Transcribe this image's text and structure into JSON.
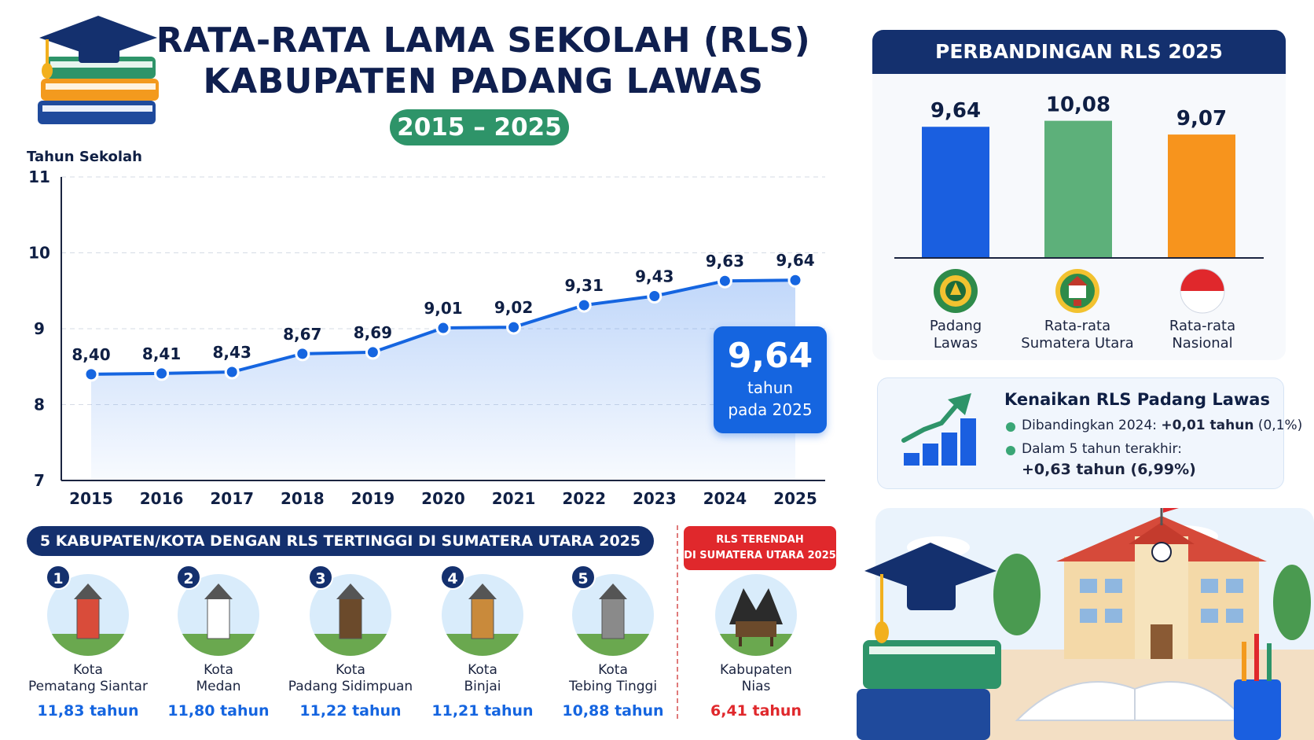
{
  "header": {
    "title_line1": "RATA-RATA LAMA SEKOLAH (RLS)",
    "title_line2": "KABUPATEN PADANG LAWAS",
    "period": "2015 – 2025"
  },
  "chart_data": [
    {
      "type": "line",
      "title": "",
      "ylabel": "Tahun Sekolah",
      "xlabel": "",
      "x": [
        "2015",
        "2016",
        "2017",
        "2018",
        "2019",
        "2020",
        "2021",
        "2022",
        "2023",
        "2024",
        "2025"
      ],
      "series": [
        {
          "values": [
            8.4,
            8.41,
            8.43,
            8.67,
            8.69,
            9.01,
            9.02,
            9.31,
            9.43,
            9.63,
            9.64
          ]
        }
      ],
      "data_labels": [
        "8,40",
        "8,41",
        "8,43",
        "8,67",
        "8,69",
        "9,01",
        "9,02",
        "9,31",
        "9,43",
        "9,63",
        "9,64"
      ],
      "ylim": [
        7,
        11
      ],
      "yticks": [
        "7",
        "8",
        "9",
        "10",
        "11"
      ],
      "grid": true,
      "color": "#1565e0"
    },
    {
      "type": "bar",
      "title": "PERBANDINGAN RLS 2025",
      "categories": [
        "Padang Lawas",
        "Rata-rata Sumatera Utara",
        "Rata-rata Nasional"
      ],
      "values": [
        9.64,
        10.08,
        9.07
      ],
      "data_labels": [
        "9,64",
        "10,08",
        "9,07"
      ],
      "colors": [
        "#1a5fe0",
        "#5db07a",
        "#f7941d"
      ]
    }
  ],
  "callout": {
    "value": "9,64",
    "line1": "tahun",
    "line2": "pada 2025"
  },
  "comparison": {
    "labels": [
      [
        "Padang",
        "Lawas"
      ],
      [
        "Rata-rata",
        "Sumatera Utara"
      ],
      [
        "Rata-rata",
        "Nasional"
      ]
    ]
  },
  "increase": {
    "title": "Kenaikan RLS Padang Lawas",
    "item1_prefix": "Dibandingkan 2024: ",
    "item1_value": "+0,01 tahun",
    "item1_suffix": " (0,1%)",
    "item2_prefix": "Dalam 5 tahun terakhir:",
    "item2_value": "+0,63 tahun (6,99%)"
  },
  "top5": {
    "header": "5 KABUPATEN/KOTA DENGAN RLS TERTINGGI DI SUMATERA UTARA 2025",
    "items": [
      {
        "rank": "1",
        "line1": "Kota",
        "line2": "Pematang Siantar",
        "value": "11,83 tahun"
      },
      {
        "rank": "2",
        "line1": "Kota",
        "line2": "Medan",
        "value": "11,80 tahun"
      },
      {
        "rank": "3",
        "line1": "Kota",
        "line2": "Padang Sidimpuan",
        "value": "11,22 tahun"
      },
      {
        "rank": "4",
        "line1": "Kota",
        "line2": "Binjai",
        "value": "11,21 tahun"
      },
      {
        "rank": "5",
        "line1": "Kota",
        "line2": "Tebing Tinggi",
        "value": "10,88 tahun"
      }
    ]
  },
  "lowest": {
    "badge_line1": "RLS TERENDAH",
    "badge_line2": "DI SUMATERA UTARA 2025",
    "line1": "Kabupaten",
    "line2": "Nias",
    "value": "6,41 tahun"
  },
  "colors": {
    "navy": "#14306e",
    "blue": "#1565e0",
    "green": "#2e9469",
    "red": "#e0282c"
  }
}
